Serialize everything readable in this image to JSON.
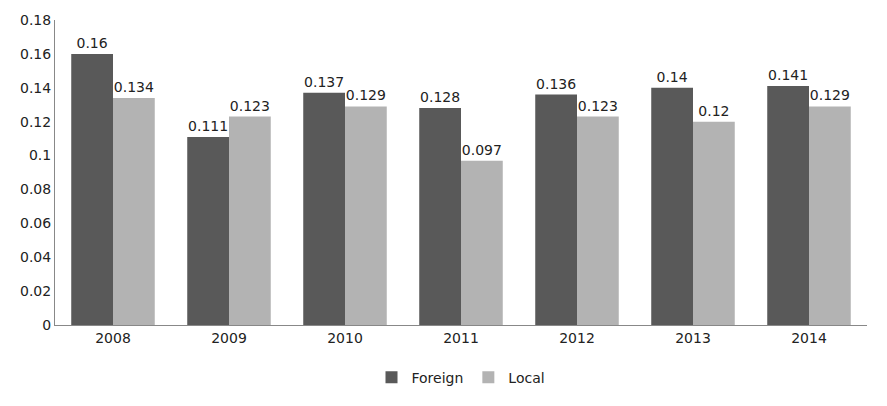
{
  "chart_data": {
    "type": "bar",
    "categories": [
      "2008",
      "2009",
      "2010",
      "2011",
      "2012",
      "2013",
      "2014"
    ],
    "series": [
      {
        "name": "Foreign",
        "color": "#595959",
        "values": [
          0.16,
          0.111,
          0.137,
          0.128,
          0.136,
          0.14,
          0.141
        ]
      },
      {
        "name": "Local",
        "color": "#b3b3b3",
        "values": [
          0.134,
          0.123,
          0.129,
          0.097,
          0.123,
          0.12,
          0.129
        ]
      }
    ],
    "ylim": [
      0,
      0.18
    ],
    "yticks": [
      0,
      0.02,
      0.04,
      0.06,
      0.08,
      0.1,
      0.12,
      0.14,
      0.16,
      0.18
    ],
    "grid": false,
    "legend": "bottom",
    "data_labels": true
  }
}
